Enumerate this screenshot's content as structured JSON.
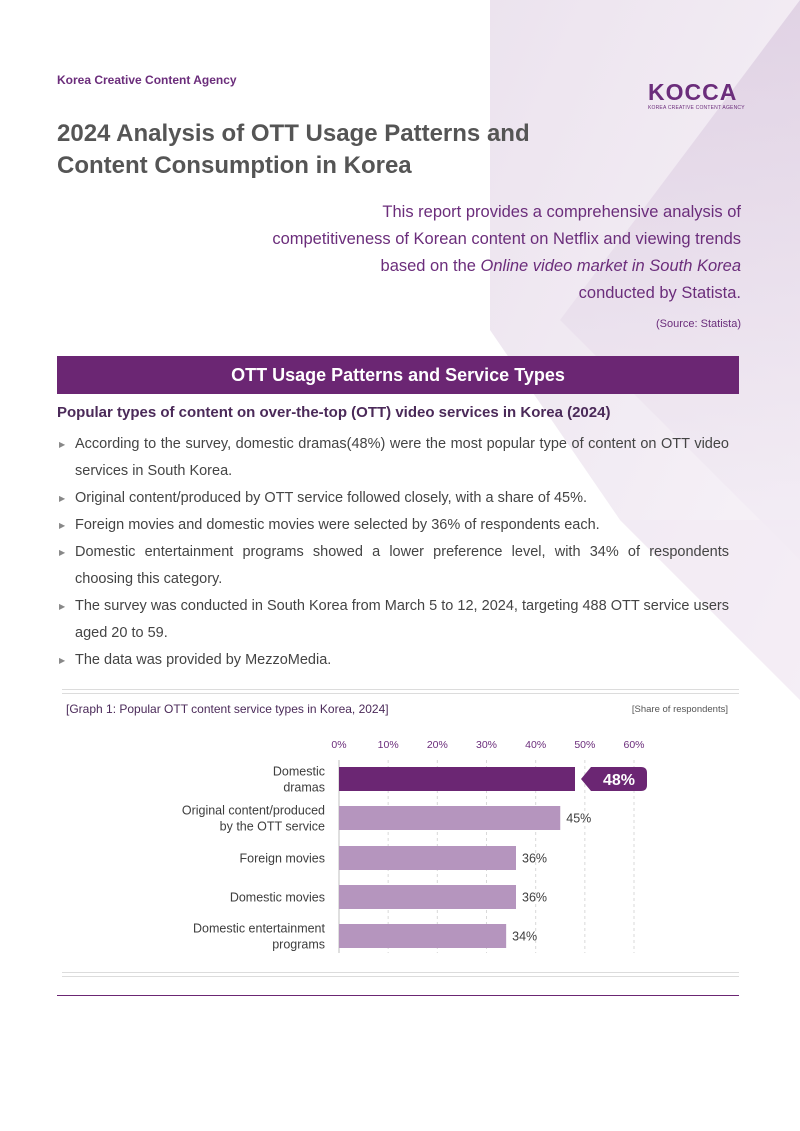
{
  "header": {
    "agency": "Korea Creative Content Agency",
    "logo_text": "KOCCA",
    "logo_subtext": "KOREA CREATIVE CONTENT AGENCY"
  },
  "title": {
    "line1": "2024 Analysis of OTT Usage Patterns and",
    "line2": "Content Consumption in Korea"
  },
  "intro": {
    "line1": "This report provides a comprehensive analysis of",
    "line2": "competitiveness of Korean content on Netflix and viewing trends",
    "line3_prefix": "based on the ",
    "line3_italic": "Online video market in South Korea",
    "line4": "conducted by Statista.",
    "source": "(Source: Statista)"
  },
  "section": {
    "title": "OTT Usage Patterns and Service Types",
    "subheading": "Popular types of content on over-the-top (OTT) video services in Korea (2024)",
    "bullets": [
      "According to the survey, domestic dramas(48%) were the most popular type of content on OTT video services in South Korea.",
      "Original content/produced by OTT service followed closely, with a share of 45%.",
      "Foreign movies and domestic movies were selected by 36% of respondents each.",
      "Domestic entertainment programs showed a lower preference level, with 34% of respondents choosing this category.",
      "The survey was conducted in South Korea from March 5 to 12, 2024, targeting 488 OTT service users aged 20 to 59.",
      "The data was provided by MezzoMedia."
    ]
  },
  "graph": {
    "caption": "[Graph 1: Popular OTT content service types in Korea, 2024]",
    "unit": "[Share of respondents]"
  },
  "chart_data": {
    "type": "bar",
    "orientation": "horizontal",
    "categories": [
      [
        "Domestic",
        "dramas"
      ],
      [
        "Original content/produced",
        "by the OTT service"
      ],
      [
        "Foreign movies"
      ],
      [
        "Domestic movies"
      ],
      [
        "Domestic entertainment",
        "programs"
      ]
    ],
    "values": [
      48,
      45,
      36,
      36,
      34
    ],
    "value_labels": [
      "48%",
      "45%",
      "36%",
      "36%",
      "34%"
    ],
    "xticks": [
      "0%",
      "10%",
      "20%",
      "30%",
      "40%",
      "50%",
      "60%"
    ],
    "xlim": [
      0,
      60
    ],
    "xtick_position": "top",
    "grid": "vertical dashed",
    "highlight_index": 0,
    "colors": {
      "highlight": "#6b2673",
      "normal": "#b595be",
      "tick": "#6b2d7b",
      "label": "#3d3d3d"
    }
  },
  "colors": {
    "brand": "#6b2673",
    "accent_text": "#6b2d7b"
  }
}
